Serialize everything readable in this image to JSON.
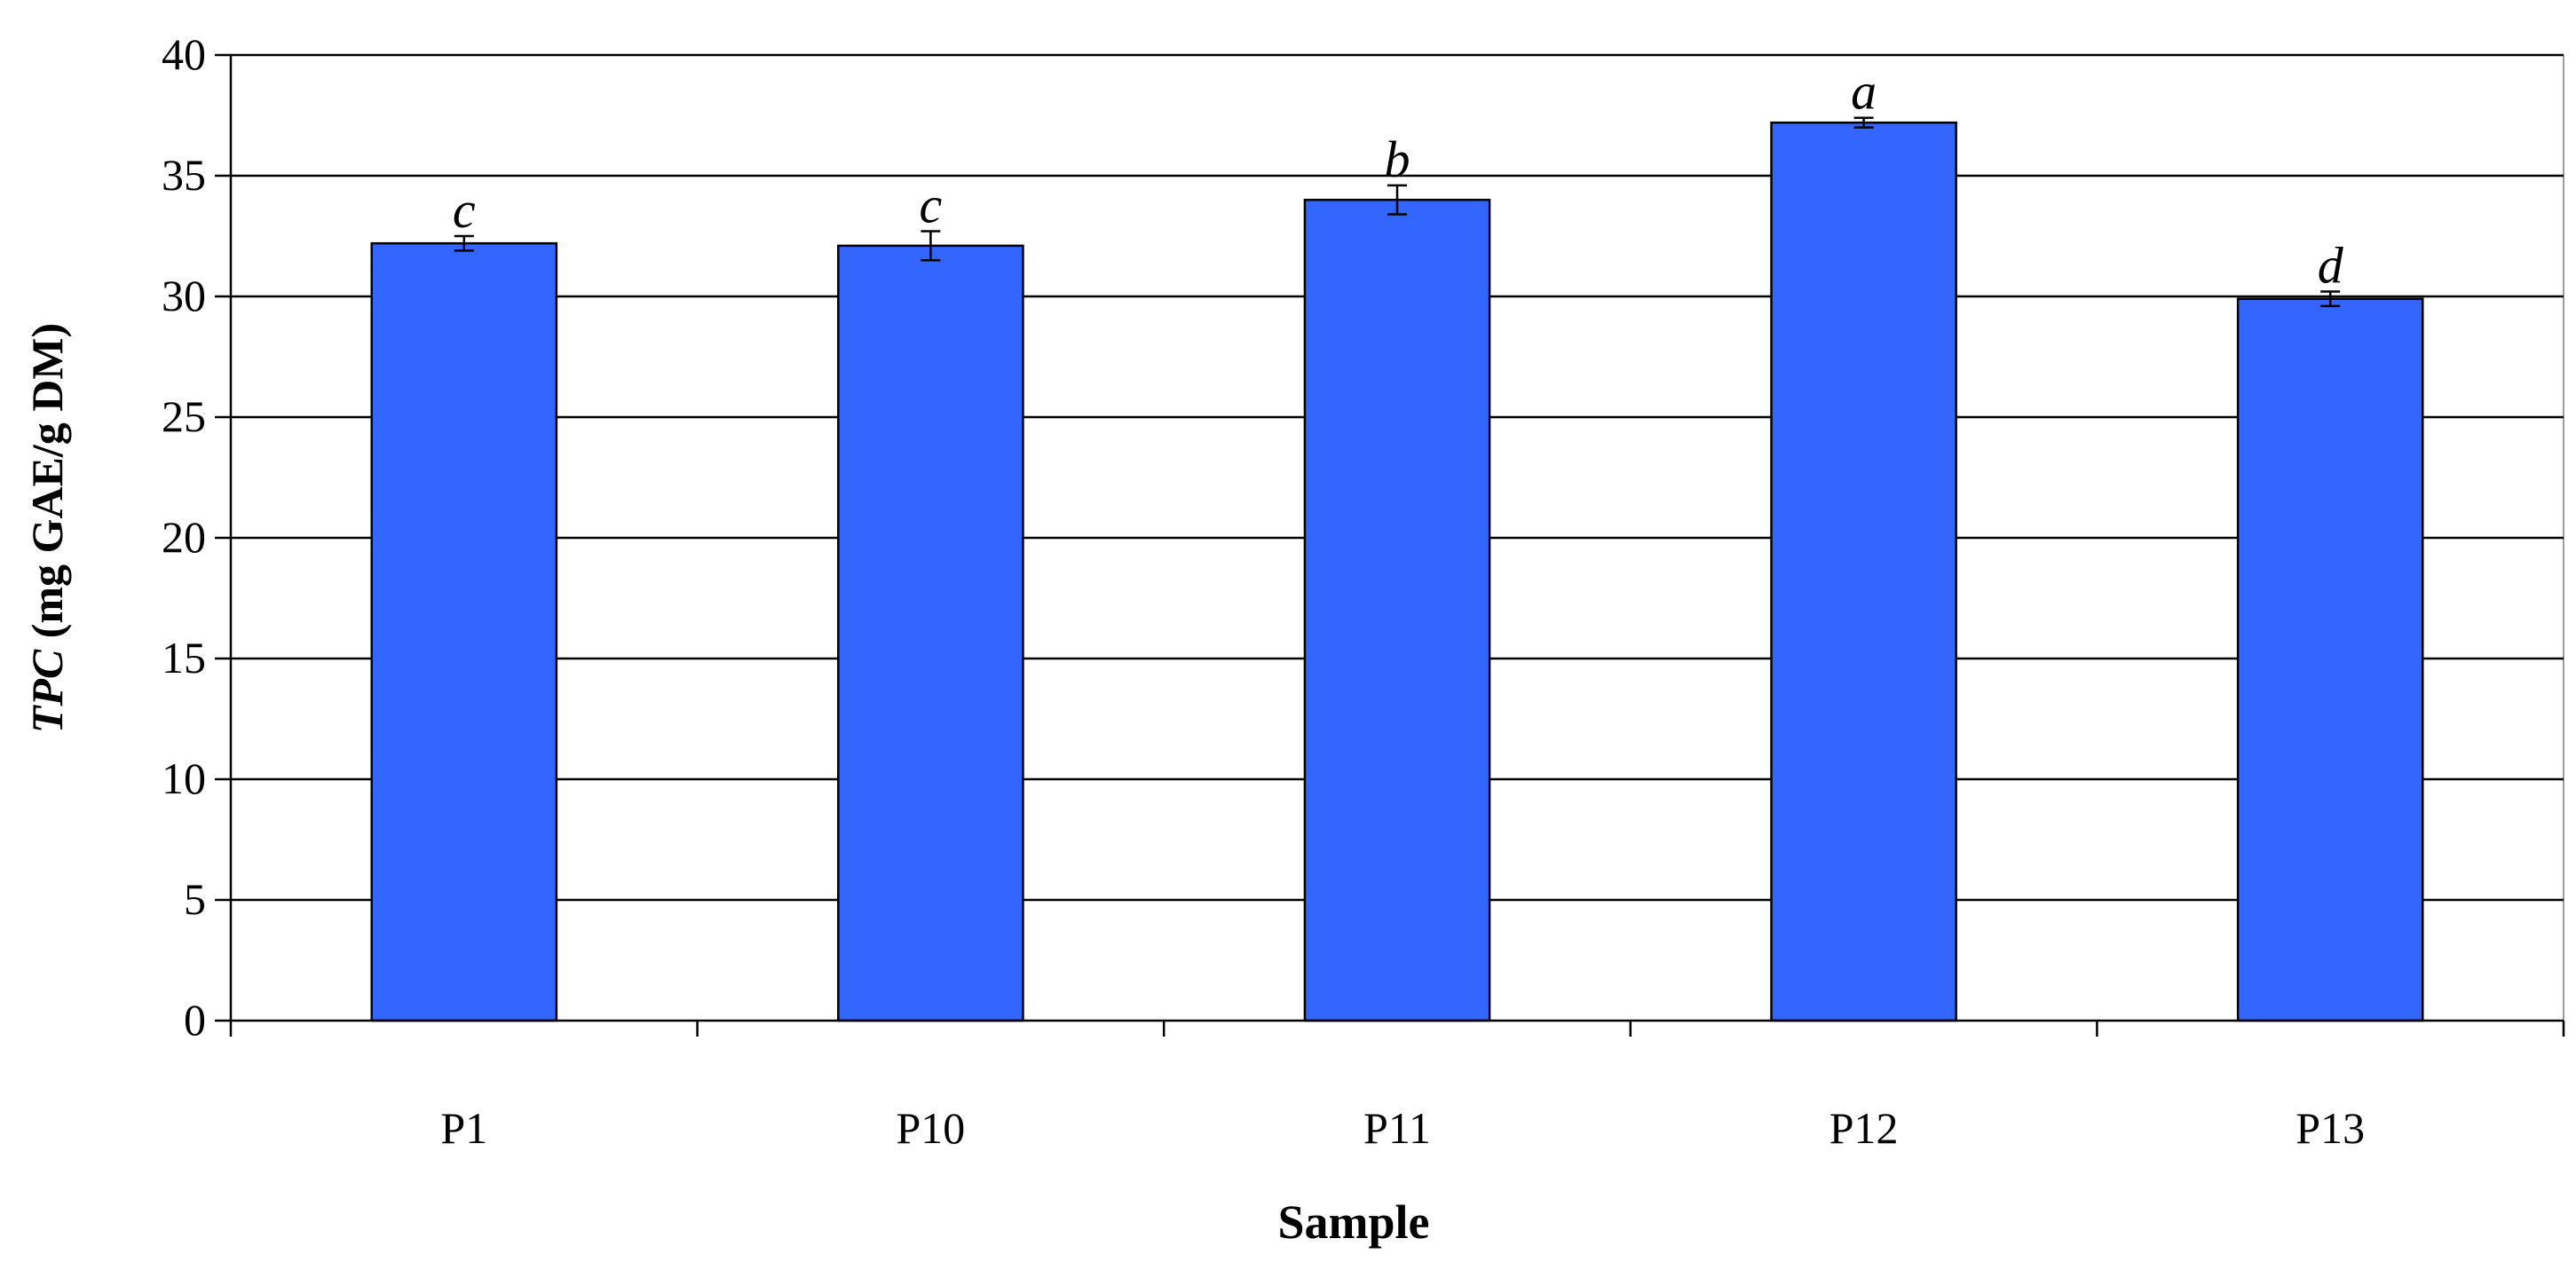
{
  "chart_data": {
    "type": "bar",
    "title": "",
    "xlabel": "Sample",
    "ylabel_main": "TPC",
    "ylabel_rest": " (mg GAE/g DM)",
    "categories": [
      "P1",
      "P10",
      "P11",
      "P12",
      "P13"
    ],
    "series": [
      {
        "values": [
          32.2,
          32.1,
          34.0,
          37.2,
          29.9
        ],
        "errors": [
          0.3,
          0.6,
          0.6,
          0.2,
          0.3
        ],
        "letters": [
          "c",
          "c",
          "b",
          "a",
          "d"
        ],
        "color": "#3366ff"
      }
    ],
    "ylim": [
      0,
      40
    ],
    "yticks": [
      0,
      5,
      10,
      15,
      20,
      25,
      30,
      35,
      40
    ],
    "grid": true,
    "legend": "none"
  }
}
